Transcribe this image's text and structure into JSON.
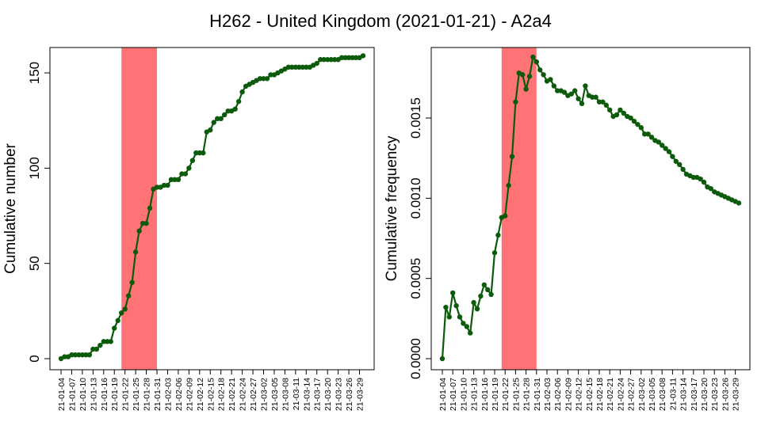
{
  "figure": {
    "title": "H262 - United Kingdom (2021-01-21) - A2a4"
  },
  "colors": {
    "line": "#0b5b0b",
    "highlight": "#ff7276",
    "axis": "#000000"
  },
  "chart_data": [
    {
      "type": "line",
      "title": "",
      "xlabel": "",
      "ylabel": "Cumulative number",
      "ylim": [
        0,
        160
      ],
      "yticks": [
        "0",
        "50",
        "100",
        "150"
      ],
      "grid": false,
      "legend": "none",
      "highlight_span": [
        "21-01-21",
        "21-01-31"
      ],
      "x_dates": {
        "start": "2021-01-04",
        "end": "2021-03-31"
      },
      "xtick_labels": [
        "21-01-04",
        "21-01-07",
        "21-01-10",
        "21-01-13",
        "21-01-16",
        "21-01-19",
        "21-01-22",
        "21-01-25",
        "21-01-28",
        "21-01-31",
        "21-02-03",
        "21-02-06",
        "21-02-09",
        "21-02-12",
        "21-02-15",
        "21-02-18",
        "21-02-21",
        "21-02-24",
        "21-02-27",
        "21-03-02",
        "21-03-05",
        "21-03-08",
        "21-03-11",
        "21-03-14",
        "21-03-17",
        "21-03-20",
        "21-03-23",
        "21-03-26",
        "21-03-29"
      ],
      "series": [
        {
          "values": [
            0,
            1,
            1,
            2,
            2,
            2,
            2,
            2,
            2,
            5,
            5,
            7,
            9,
            9,
            9,
            16,
            20,
            24,
            26,
            33,
            40,
            56,
            67,
            71,
            71,
            79,
            89,
            90,
            90,
            91,
            91,
            94,
            94,
            94,
            97,
            97,
            100,
            104,
            108,
            108,
            108,
            119,
            120,
            124,
            126,
            126,
            128,
            130,
            130,
            131,
            135,
            140,
            143,
            144,
            145,
            146,
            147,
            147,
            147,
            149,
            149,
            150,
            151,
            152,
            153,
            153,
            153,
            153,
            153,
            153,
            153,
            154,
            155,
            157,
            157,
            157,
            157,
            157,
            157,
            158,
            158,
            158,
            158,
            158,
            158,
            159
          ]
        }
      ]
    },
    {
      "type": "line",
      "title": "",
      "xlabel": "",
      "ylabel": "Cumulative frequency",
      "ylim": [
        0,
        0.0019
      ],
      "yticks": [
        "0.0000",
        "0.0005",
        "0.0010",
        "0.0015"
      ],
      "grid": false,
      "legend": "none",
      "highlight_span": [
        "21-01-21",
        "21-01-31"
      ],
      "x_dates": {
        "start": "2021-01-04",
        "end": "2021-03-31"
      },
      "xtick_labels": [
        "21-01-04",
        "21-01-07",
        "21-01-10",
        "21-01-13",
        "21-01-16",
        "21-01-19",
        "21-01-22",
        "21-01-25",
        "21-01-28",
        "21-01-31",
        "21-02-03",
        "21-02-06",
        "21-02-09",
        "21-02-12",
        "21-02-15",
        "21-02-18",
        "21-02-21",
        "21-02-24",
        "21-02-27",
        "21-03-02",
        "21-03-05",
        "21-03-08",
        "21-03-11",
        "21-03-14",
        "21-03-17",
        "21-03-20",
        "21-03-23",
        "21-03-26",
        "21-03-29"
      ],
      "series": [
        {
          "values": [
            0,
            0.00032,
            0.00026,
            0.00041,
            0.00033,
            0.00026,
            0.00022,
            0.0002,
            0.00016,
            0.00035,
            0.00031,
            0.00039,
            0.00046,
            0.00043,
            0.0004,
            0.00066,
            0.00077,
            0.00088,
            0.00089,
            0.00108,
            0.00126,
            0.0016,
            0.00178,
            0.00177,
            0.00168,
            0.00176,
            0.00188,
            0.00185,
            0.0018,
            0.00177,
            0.00173,
            0.00174,
            0.0017,
            0.00167,
            0.00167,
            0.00166,
            0.00164,
            0.00165,
            0.00167,
            0.00162,
            0.00159,
            0.0017,
            0.00164,
            0.00163,
            0.00163,
            0.0016,
            0.0016,
            0.00158,
            0.00155,
            0.00151,
            0.00152,
            0.00155,
            0.00153,
            0.00151,
            0.0015,
            0.00148,
            0.00146,
            0.00144,
            0.0014,
            0.0014,
            0.00138,
            0.00136,
            0.00135,
            0.00133,
            0.00131,
            0.00129,
            0.00126,
            0.00123,
            0.00121,
            0.00118,
            0.00115,
            0.00114,
            0.00113,
            0.00113,
            0.00112,
            0.0011,
            0.00107,
            0.00106,
            0.00104,
            0.00103,
            0.00102,
            0.00101,
            0.001,
            0.00099,
            0.00098,
            0.00097
          ]
        }
      ]
    }
  ]
}
